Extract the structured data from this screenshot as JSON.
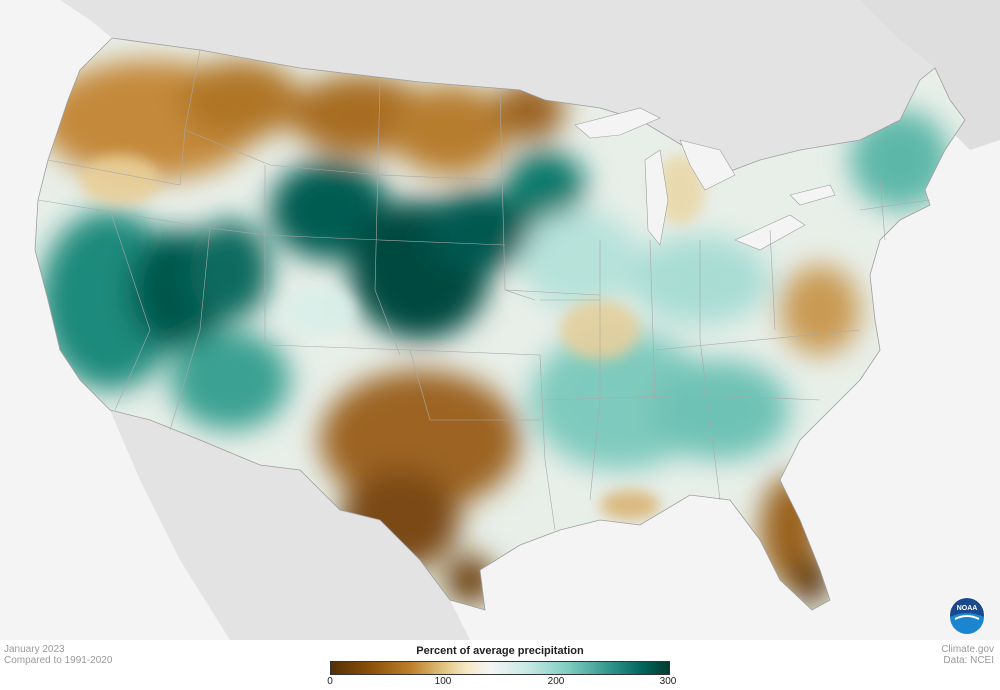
{
  "map": {
    "title": "Percent of average precipitation",
    "period": "January 2023",
    "baseline": "Compared to 1991-2020",
    "source_site": "Climate.gov",
    "source_data": "Data: NCEI",
    "legend": {
      "title": "Percent of average precipitation",
      "ticks": [
        {
          "value": 0,
          "label": "0"
        },
        {
          "value": 100,
          "label": "100"
        },
        {
          "value": 200,
          "label": "200"
        },
        {
          "value": 300,
          "label": "300"
        }
      ],
      "range": [
        0,
        300
      ]
    },
    "colors": {
      "very_dry": "#543005",
      "dry": "#bf812d",
      "near_normal": "#f5f5f5",
      "wet": "#80cdc1",
      "very_wet": "#003c30",
      "land_outside": "#e3e3e3",
      "water": "#f4f4f4"
    },
    "logo": "noaa-logo"
  }
}
